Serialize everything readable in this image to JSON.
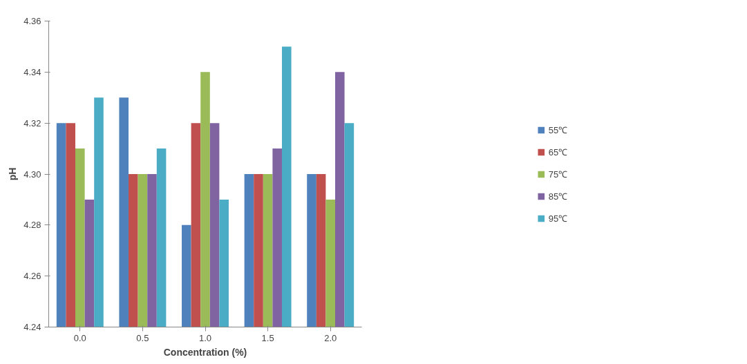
{
  "chart_data": {
    "type": "bar",
    "xlabel": "Concentration (%)",
    "ylabel": "pH",
    "categories": [
      "0.0",
      "0.5",
      "1.0",
      "1.5",
      "2.0"
    ],
    "series": [
      {
        "name": "55℃",
        "color": "#4f81bd",
        "values": [
          4.32,
          4.33,
          4.28,
          4.3,
          4.3
        ]
      },
      {
        "name": "65℃",
        "color": "#c0504d",
        "values": [
          4.32,
          4.3,
          4.32,
          4.3,
          4.3
        ]
      },
      {
        "name": "75℃",
        "color": "#9bbb59",
        "values": [
          4.31,
          4.3,
          4.34,
          4.3,
          4.29
        ]
      },
      {
        "name": "85℃",
        "color": "#8064a2",
        "values": [
          4.29,
          4.3,
          4.32,
          4.31,
          4.34
        ]
      },
      {
        "name": "95℃",
        "color": "#4bacc6",
        "values": [
          4.33,
          4.31,
          4.29,
          4.35,
          4.32
        ]
      }
    ],
    "ylim": [
      4.24,
      4.36
    ],
    "yticks": [
      {
        "value": 4.24,
        "label": "4.24"
      },
      {
        "value": 4.26,
        "label": "4.26"
      },
      {
        "value": 4.28,
        "label": "4.28"
      },
      {
        "value": 4.3,
        "label": "4.30"
      },
      {
        "value": 4.32,
        "label": "4.32"
      },
      {
        "value": 4.34,
        "label": "4.34"
      },
      {
        "value": 4.36,
        "label": "4.36"
      }
    ],
    "grid": false,
    "legend": "right"
  }
}
